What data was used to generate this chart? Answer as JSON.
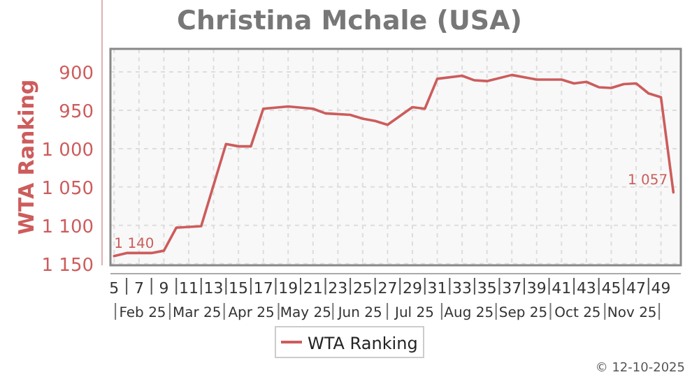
{
  "chart_data": {
    "type": "line",
    "title": "Christina Mchale (USA)",
    "ylabel": "WTA Ranking",
    "x": [
      5,
      6,
      8,
      9,
      10,
      12,
      14,
      15,
      16,
      17,
      19,
      21,
      22,
      24,
      25,
      26,
      27,
      29,
      30,
      31,
      33,
      34,
      35,
      37,
      39,
      41,
      42,
      43,
      44,
      45,
      46,
      47,
      48,
      49,
      50
    ],
    "series": [
      {
        "name": "WTA Ranking",
        "color": "#cd5c5c",
        "values": [
          1140,
          1136,
          1136,
          1133,
          1103,
          1101,
          994,
          997,
          997,
          948,
          945,
          948,
          954,
          956,
          961,
          964,
          969,
          946,
          948,
          909,
          905,
          911,
          912,
          904,
          910,
          910,
          915,
          913,
          920,
          921,
          916,
          915,
          928,
          933,
          1057
        ],
        "value_labels": [
          "1 140",
          null,
          null,
          null,
          null,
          null,
          null,
          null,
          null,
          null,
          null,
          null,
          null,
          null,
          null,
          null,
          null,
          null,
          null,
          null,
          null,
          null,
          null,
          null,
          null,
          null,
          null,
          null,
          null,
          null,
          null,
          null,
          null,
          null,
          "1 057"
        ]
      }
    ],
    "xlim": [
      4.7,
      50.6
    ],
    "xticks": [
      5,
      {
        "value": 6,
        "label": null
      },
      7,
      {
        "value": 8,
        "label": null
      },
      9,
      {
        "value": 10,
        "label": null
      },
      11,
      {
        "value": 12,
        "label": null
      },
      13,
      {
        "value": 14,
        "label": null
      },
      15,
      {
        "value": 16,
        "label": null
      },
      17,
      {
        "value": 18,
        "label": null
      },
      19,
      {
        "value": 20,
        "label": null
      },
      21,
      {
        "value": 22,
        "label": null
      },
      23,
      {
        "value": 24,
        "label": null
      },
      25,
      {
        "value": 26,
        "label": null
      },
      27,
      {
        "value": 28,
        "label": null
      },
      29,
      {
        "value": 30,
        "label": null
      },
      31,
      {
        "value": 32,
        "label": null
      },
      33,
      {
        "value": 34,
        "label": null
      },
      35,
      {
        "value": 36,
        "label": null
      },
      37,
      {
        "value": 38,
        "label": null
      },
      39,
      {
        "value": 40,
        "label": null
      },
      41,
      {
        "value": 42,
        "label": null
      },
      43,
      {
        "value": 44,
        "label": null
      },
      45,
      {
        "value": 46,
        "label": null
      },
      47,
      {
        "value": 48,
        "label": null
      },
      49
    ],
    "ylim": [
      1152,
      870
    ],
    "yticks": [
      900,
      950,
      {
        "value": 1000,
        "label": "1 000"
      },
      {
        "value": 1050,
        "label": "1 050"
      },
      {
        "value": 1100,
        "label": "1 100"
      },
      {
        "value": 1150,
        "label": "1 150"
      }
    ],
    "grid": true,
    "legend": "bottom",
    "marker": "none",
    "line_style": "solid",
    "annotations": [
      "Feb 25",
      "Mar 25",
      "Apr 25",
      "May 25",
      "Jun 25",
      "Jul 25",
      "Aug 25",
      "Sep 25",
      "Oct 25",
      "Nov 25",
      "© 12-10-2025"
    ]
  }
}
